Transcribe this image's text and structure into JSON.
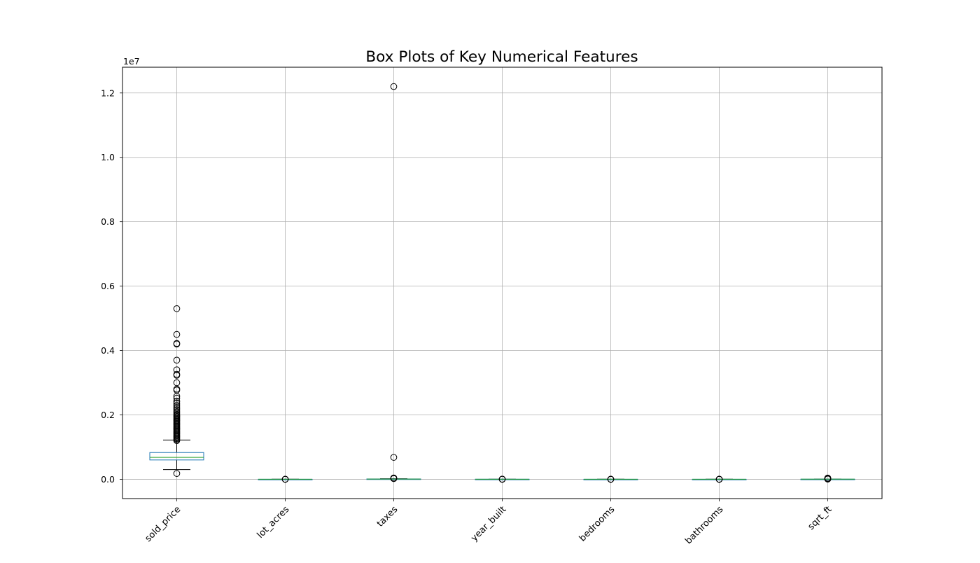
{
  "chart_data": {
    "type": "box",
    "title": "Box Plots of Key Numerical Features",
    "offset_label": "1e7",
    "xlabel": "",
    "ylabel": "",
    "ylim": [
      -600000,
      12800000
    ],
    "yticks": [
      0,
      2000000,
      4000000,
      6000000,
      8000000,
      10000000,
      12000000
    ],
    "ytick_labels": [
      "0.0",
      "0.2",
      "0.4",
      "0.6",
      "0.8",
      "1.0",
      "1.2"
    ],
    "grid": true,
    "categories": [
      "sold_price",
      "lot_acres",
      "taxes",
      "year_built",
      "bedrooms",
      "bathrooms",
      "sqrt_ft"
    ],
    "boxes": [
      {
        "name": "sold_price",
        "whisker_low": 300000,
        "q1": 600000,
        "median": 680000,
        "q3": 830000,
        "whisker_high": 1220000,
        "outliers": [
          180000,
          1200000,
          1230000,
          1260000,
          1290000,
          1320000,
          1350000,
          1380000,
          1410000,
          1440000,
          1470000,
          1500000,
          1530000,
          1560000,
          1590000,
          1620000,
          1650000,
          1680000,
          1710000,
          1740000,
          1770000,
          1800000,
          1830000,
          1860000,
          1890000,
          1920000,
          1950000,
          1980000,
          2010000,
          2050000,
          2100000,
          2150000,
          2200000,
          2250000,
          2300000,
          2360000,
          2420000,
          2520000,
          2580000,
          2770000,
          2800000,
          3000000,
          3230000,
          3260000,
          3400000,
          3700000,
          4200000,
          4220000,
          4500000,
          5300000
        ]
      },
      {
        "name": "lot_acres",
        "whisker_low": 0,
        "q1": 0,
        "median": 0,
        "q3": 1,
        "whisker_high": 2,
        "outliers": [
          5,
          10,
          20,
          50
        ]
      },
      {
        "name": "taxes",
        "whisker_low": 0,
        "q1": 5000,
        "median": 7000,
        "q3": 10000,
        "whisker_high": 18000,
        "outliers": [
          20000,
          25000,
          30000,
          35000,
          40000,
          680000,
          12200000
        ]
      },
      {
        "name": "year_built",
        "whisker_low": 1950,
        "q1": 1995,
        "median": 2003,
        "q3": 2010,
        "whisker_high": 2019,
        "outliers": [
          0,
          1800,
          1900,
          1920
        ]
      },
      {
        "name": "bedrooms",
        "whisker_low": 2,
        "q1": 3,
        "median": 4,
        "q3": 4,
        "whisker_high": 6,
        "outliers": [
          7,
          8,
          10,
          15,
          30
        ]
      },
      {
        "name": "bathrooms",
        "whisker_low": 1,
        "q1": 2,
        "median": 3,
        "q3": 4,
        "whisker_high": 6,
        "outliers": [
          7,
          8,
          10,
          20,
          30
        ]
      },
      {
        "name": "sqrt_ft",
        "whisker_low": 800,
        "q1": 2000,
        "median": 2600,
        "q3": 3200,
        "whisker_high": 5000,
        "outliers": [
          6000,
          8000,
          10000,
          12000,
          15000,
          20000,
          25000,
          30000,
          38000
        ]
      }
    ],
    "colors": {
      "box": "#1f77b4",
      "median": "#2ca02c",
      "whisker": "#000000",
      "flier": "#000000",
      "grid": "#b0b0b0"
    }
  }
}
